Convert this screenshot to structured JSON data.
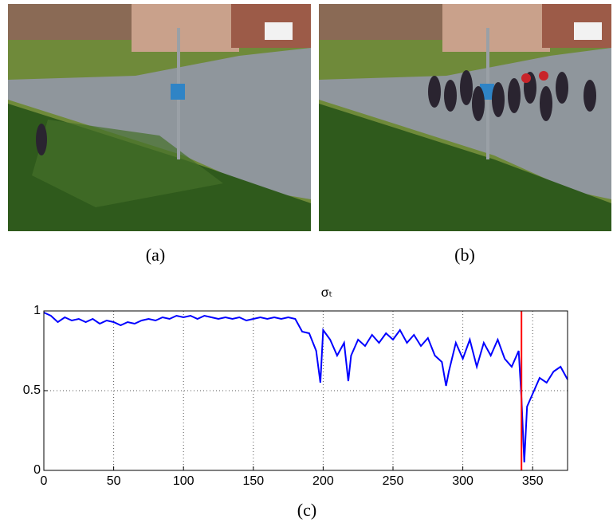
{
  "captions": [
    "(a)",
    "(b)",
    "(c)"
  ],
  "chart_data": {
    "type": "line",
    "title": "σₜ",
    "x": [
      0,
      5,
      10,
      15,
      20,
      25,
      30,
      35,
      40,
      45,
      50,
      55,
      60,
      65,
      70,
      75,
      80,
      85,
      90,
      95,
      100,
      105,
      110,
      115,
      120,
      125,
      130,
      135,
      140,
      145,
      150,
      155,
      160,
      165,
      170,
      175,
      180,
      185,
      190,
      195,
      198,
      200,
      205,
      210,
      215,
      218,
      220,
      225,
      230,
      235,
      240,
      245,
      250,
      255,
      260,
      265,
      270,
      275,
      280,
      285,
      288,
      290,
      295,
      300,
      305,
      310,
      315,
      320,
      325,
      330,
      335,
      340,
      342,
      344,
      346,
      350,
      355,
      360,
      365,
      370,
      375
    ],
    "series": [
      {
        "name": "σₜ",
        "color": "#0000ff",
        "values": [
          0.99,
          0.97,
          0.93,
          0.96,
          0.94,
          0.95,
          0.93,
          0.95,
          0.92,
          0.94,
          0.93,
          0.91,
          0.93,
          0.92,
          0.94,
          0.95,
          0.94,
          0.96,
          0.95,
          0.97,
          0.96,
          0.97,
          0.95,
          0.97,
          0.96,
          0.95,
          0.96,
          0.95,
          0.96,
          0.94,
          0.95,
          0.96,
          0.95,
          0.96,
          0.95,
          0.96,
          0.95,
          0.87,
          0.86,
          0.75,
          0.55,
          0.88,
          0.82,
          0.72,
          0.8,
          0.56,
          0.72,
          0.82,
          0.78,
          0.85,
          0.8,
          0.86,
          0.82,
          0.88,
          0.8,
          0.85,
          0.78,
          0.83,
          0.72,
          0.68,
          0.53,
          0.62,
          0.8,
          0.7,
          0.82,
          0.65,
          0.8,
          0.72,
          0.82,
          0.7,
          0.65,
          0.75,
          0.45,
          0.05,
          0.4,
          0.48,
          0.58,
          0.55,
          0.62,
          0.65,
          0.57
        ]
      }
    ],
    "vline": {
      "x": 342,
      "color": "#ff0000"
    },
    "xlim": [
      0,
      375
    ],
    "ylim": [
      0,
      1
    ],
    "xticks": [
      0,
      50,
      100,
      150,
      200,
      250,
      300,
      350
    ],
    "yticks": [
      0,
      0.5,
      1
    ],
    "grid": true
  }
}
